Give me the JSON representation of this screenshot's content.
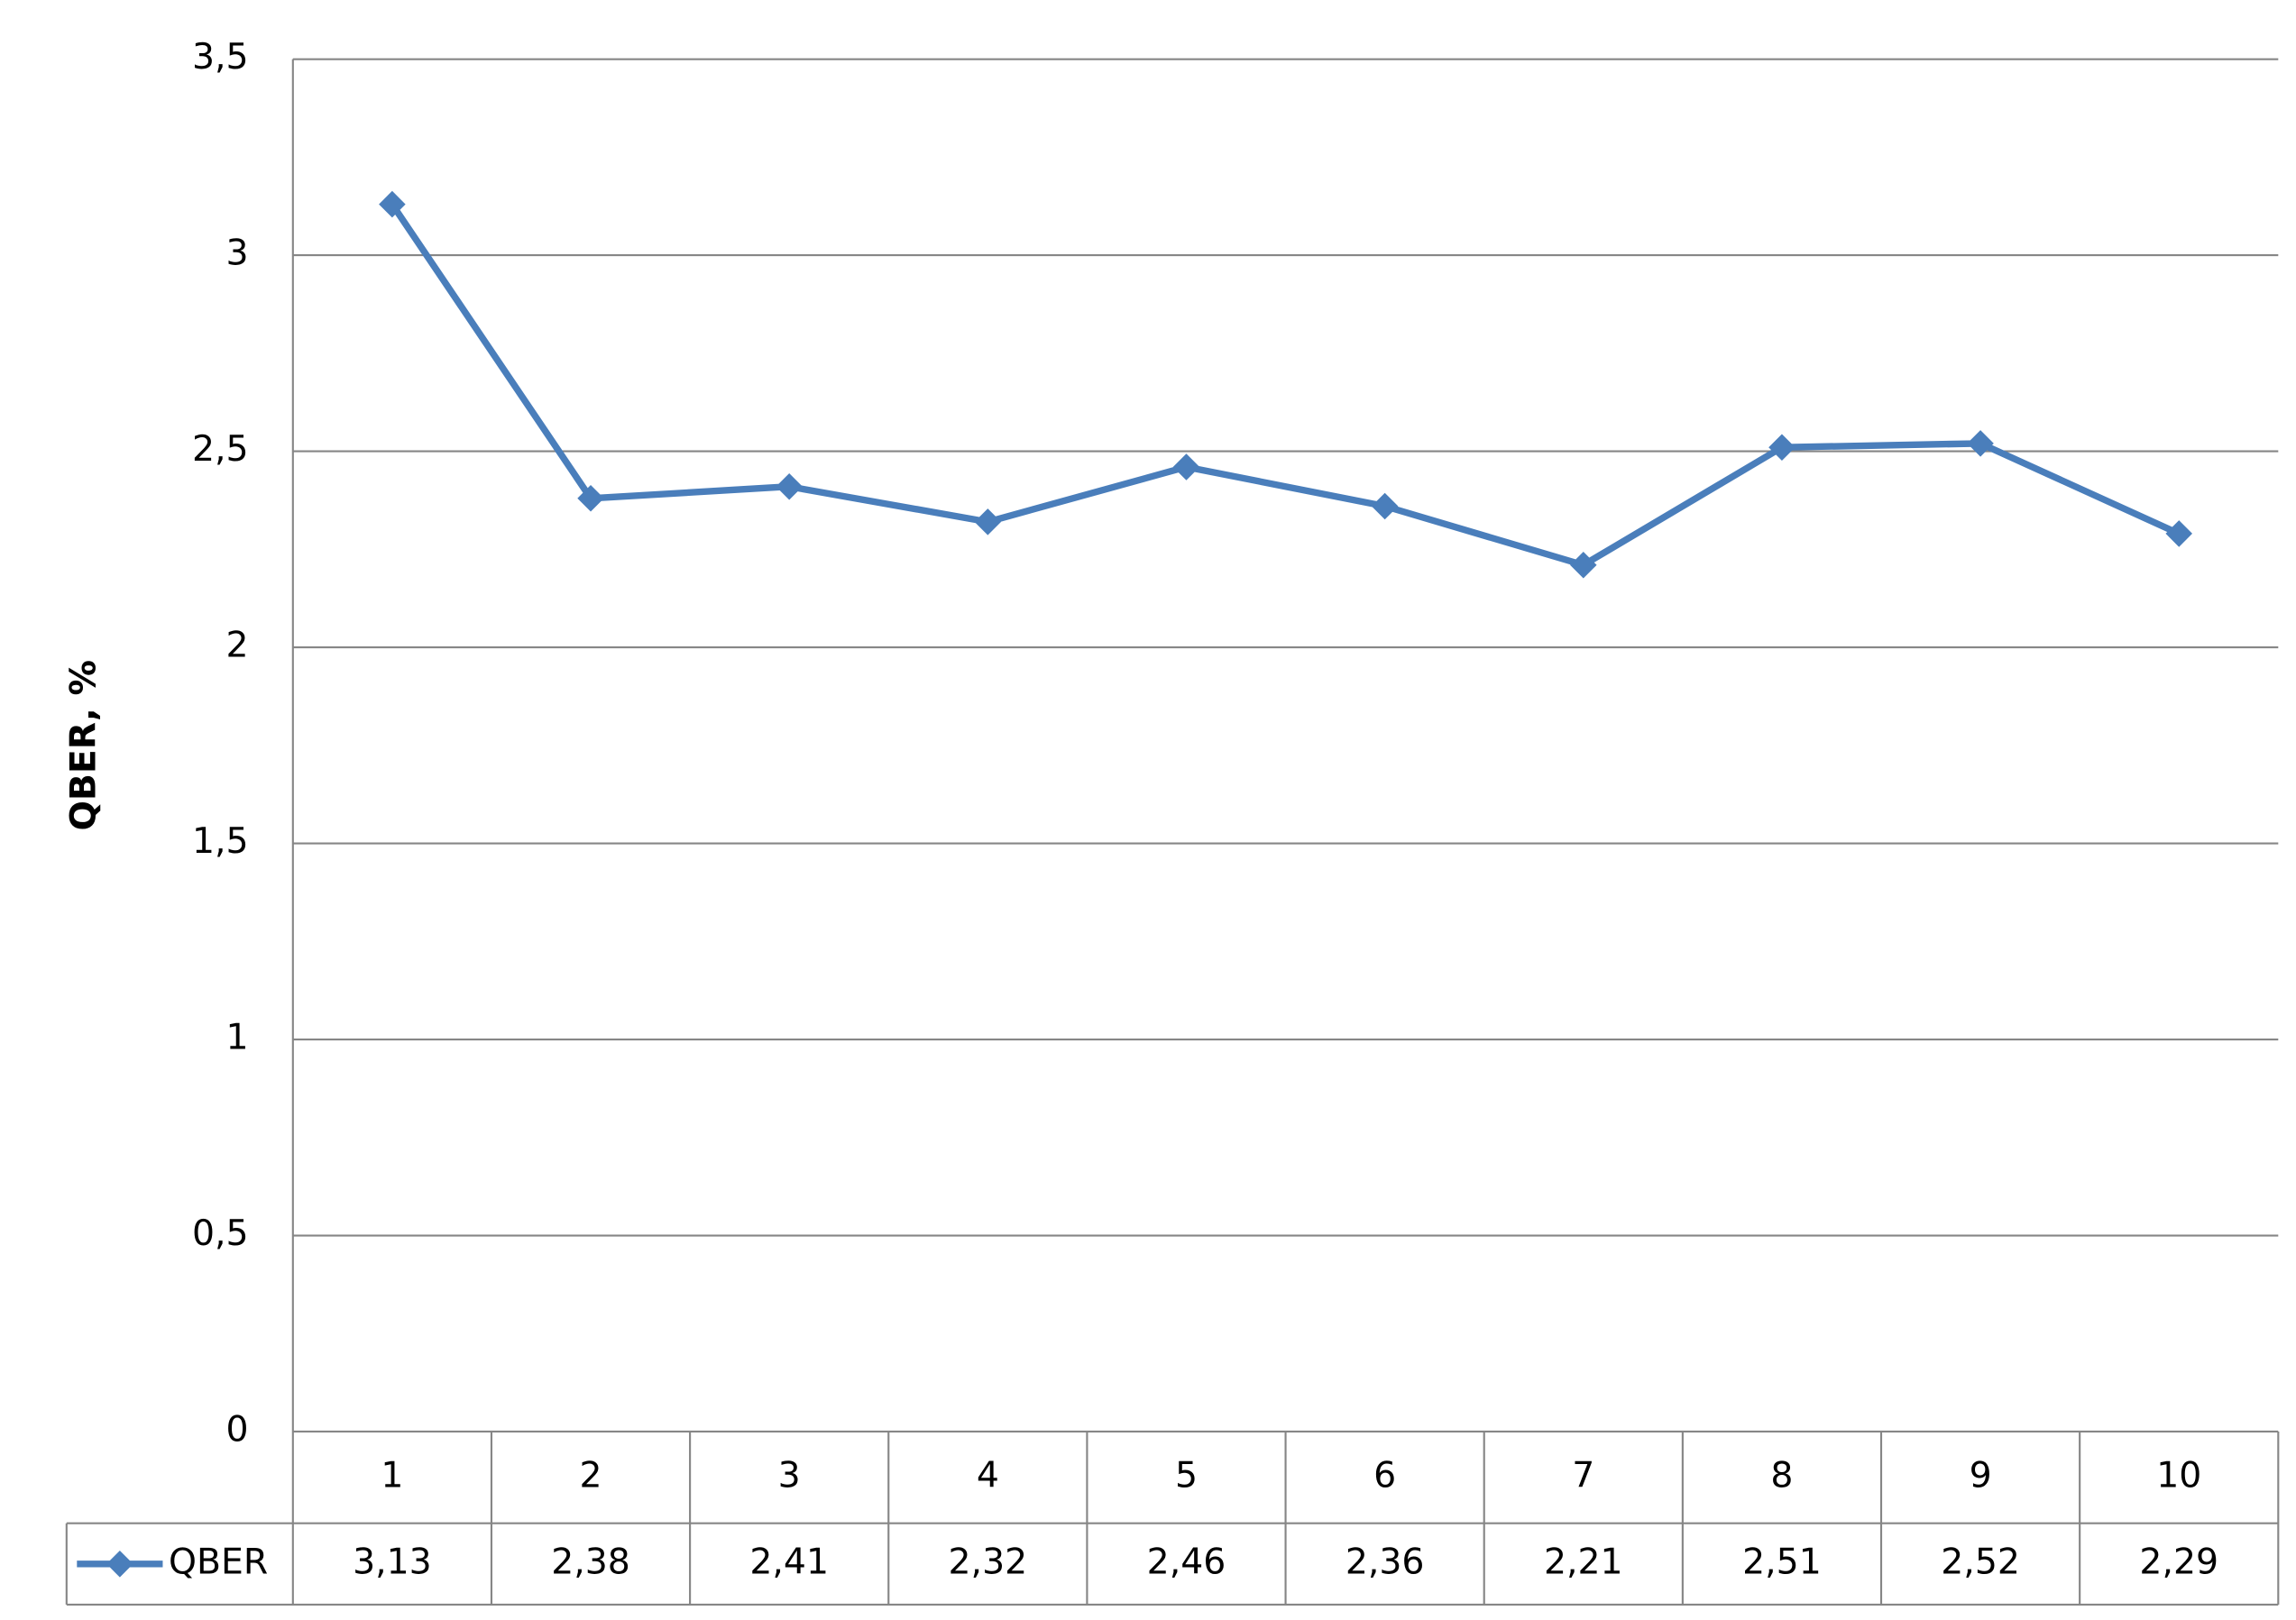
{
  "chart_data": {
    "type": "line",
    "y_label": "QBER, %",
    "categories": [
      "1",
      "2",
      "3",
      "4",
      "5",
      "6",
      "7",
      "8",
      "9",
      "10"
    ],
    "series": [
      {
        "name": "QBER",
        "color": "#4a7ebb",
        "values": [
          3.13,
          2.38,
          2.41,
          2.32,
          2.46,
          2.36,
          2.21,
          2.51,
          2.52,
          2.29
        ],
        "value_labels": [
          "3,13",
          "2,38",
          "2,41",
          "2,32",
          "2,46",
          "2,36",
          "2,21",
          "2,51",
          "2,52",
          "2,29"
        ]
      }
    ],
    "ylim": [
      0,
      3.5
    ],
    "yticks": [
      0,
      {
        "value": 0.5,
        "label": "0,5"
      },
      1,
      {
        "value": 1.5,
        "label": "1,5"
      },
      2,
      {
        "value": 2.5,
        "label": "2,5"
      },
      3,
      {
        "value": 3.5,
        "label": "3,5"
      }
    ],
    "grid": true,
    "data_table": true
  }
}
